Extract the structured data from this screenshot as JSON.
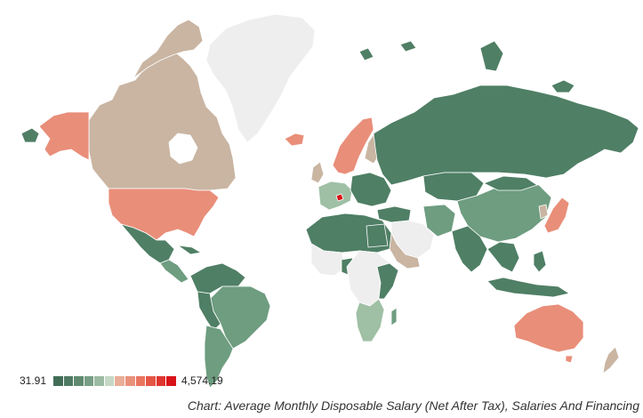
{
  "legend": {
    "min": "31.91",
    "max": "4,574.19",
    "colors": [
      "#416d57",
      "#4e7a62",
      "#5f8a70",
      "#789e85",
      "#9cbba3",
      "#c5d8c5",
      "#e9ad98",
      "#ea917b",
      "#ea7560",
      "#e55546",
      "#df3530",
      "#d8131a"
    ]
  },
  "caption": "Chart: Average Monthly Disposable Salary (Net After Tax), Salaries And Financing",
  "map_colors": {
    "dark_green": "#4f7f65",
    "mid_green": "#6e9d80",
    "light_green": "#9fc0a5",
    "tan_no_highlight": "#c9b5a2",
    "salmon": "#e98e79",
    "red": "#d8131a",
    "no_data": "#eeeeee",
    "border": "#ffffff"
  }
}
